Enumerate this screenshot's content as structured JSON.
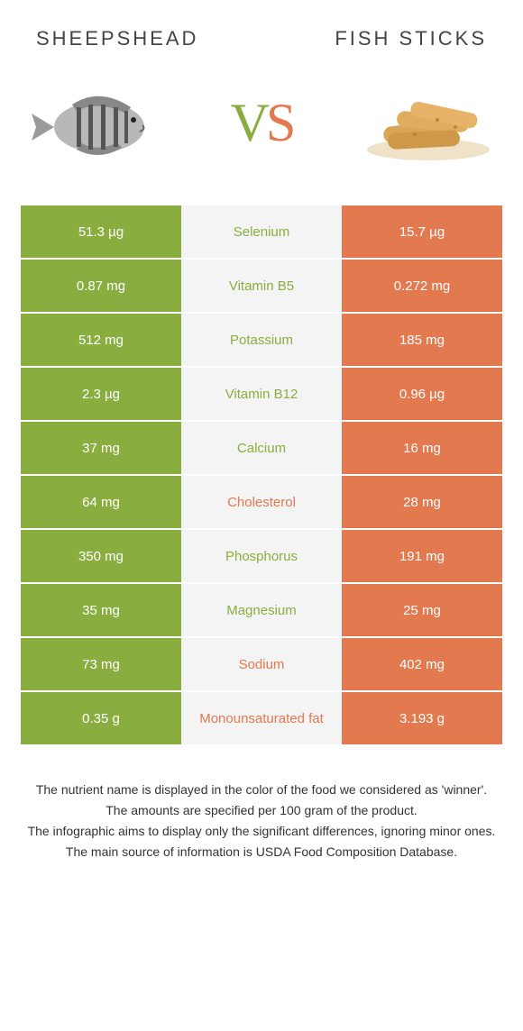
{
  "header": {
    "left_title": "Sheepshead",
    "right_title": "Fish sticks"
  },
  "vs": {
    "v": "V",
    "s": "S"
  },
  "colors": {
    "left": "#8aad3f",
    "right": "#e2794f",
    "mid_bg": "#f4f4f4"
  },
  "rows": [
    {
      "left": "51.3 µg",
      "label": "Selenium",
      "right": "15.7 µg",
      "winner": "left"
    },
    {
      "left": "0.87 mg",
      "label": "Vitamin B5",
      "right": "0.272 mg",
      "winner": "left"
    },
    {
      "left": "512 mg",
      "label": "Potassium",
      "right": "185 mg",
      "winner": "left"
    },
    {
      "left": "2.3 µg",
      "label": "Vitamin B12",
      "right": "0.96 µg",
      "winner": "left"
    },
    {
      "left": "37 mg",
      "label": "Calcium",
      "right": "16 mg",
      "winner": "left"
    },
    {
      "left": "64 mg",
      "label": "Cholesterol",
      "right": "28 mg",
      "winner": "right"
    },
    {
      "left": "350 mg",
      "label": "Phosphorus",
      "right": "191 mg",
      "winner": "left"
    },
    {
      "left": "35 mg",
      "label": "Magnesium",
      "right": "25 mg",
      "winner": "left"
    },
    {
      "left": "73 mg",
      "label": "Sodium",
      "right": "402 mg",
      "winner": "right"
    },
    {
      "left": "0.35 g",
      "label": "Monounsaturated fat",
      "right": "3.193 g",
      "winner": "right"
    }
  ],
  "footer": {
    "line1": "The nutrient name is displayed in the color of the food we considered as 'winner'.",
    "line2": "The amounts are specified per 100 gram of the product.",
    "line3": "The infographic aims to display only the significant differences, ignoring minor ones.",
    "line4": "The main source of information is USDA Food Composition Database."
  }
}
